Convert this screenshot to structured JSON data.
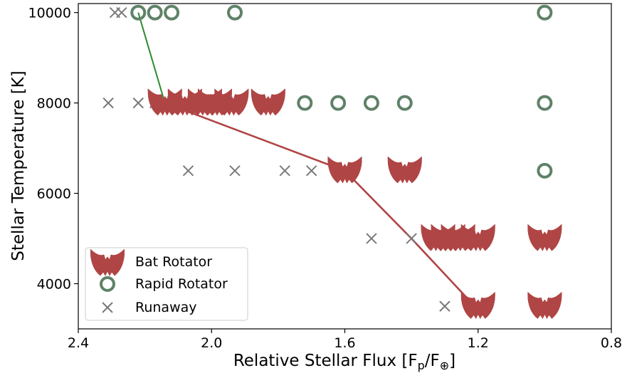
{
  "chart_data": {
    "type": "scatter",
    "title": "",
    "xlabel": "Relative Stellar Flux [F",
    "xlabel_sub": "p",
    "xlabel_sep": "/F",
    "xlabel_sub2": "⊕",
    "xlabel_close": "]",
    "ylabel": "Stellar Temperature [K]",
    "xlim": [
      2.4,
      0.8
    ],
    "ylim": [
      3000,
      10200
    ],
    "x_reversed": true,
    "xticks": [
      2.4,
      2.0,
      1.6,
      1.2,
      0.8
    ],
    "xtick_labels": [
      "2.4",
      "2.0",
      "1.6",
      "1.2",
      "0.8"
    ],
    "yticks": [
      4000,
      6000,
      8000,
      10000
    ],
    "ytick_labels": [
      "4000",
      "6000",
      "8000",
      "10000"
    ],
    "grid": false,
    "legend_position": "lower-left",
    "colors": {
      "bat": "#b04545",
      "rapid": "#5f8268",
      "runaway": "#7a7a7a",
      "boundary": "#b04545",
      "boundary_top": "#2e8b2e"
    },
    "series": [
      {
        "name": "Bat Rotator",
        "marker": "bat-icon",
        "points": [
          [
            2.14,
            8000
          ],
          [
            2.08,
            8000
          ],
          [
            2.02,
            8000
          ],
          [
            1.99,
            8000
          ],
          [
            1.94,
            8000
          ],
          [
            1.83,
            8000
          ],
          [
            1.6,
            6500
          ],
          [
            1.42,
            6500
          ],
          [
            1.32,
            5000
          ],
          [
            1.29,
            5000
          ],
          [
            1.26,
            5000
          ],
          [
            1.2,
            5000
          ],
          [
            1.2,
            3500
          ],
          [
            1.0,
            5000
          ],
          [
            1.0,
            3500
          ]
        ]
      },
      {
        "name": "Rapid Rotator",
        "marker": "circle",
        "points": [
          [
            2.22,
            10000
          ],
          [
            2.17,
            10000
          ],
          [
            2.12,
            10000
          ],
          [
            1.93,
            10000
          ],
          [
            1.0,
            10000
          ],
          [
            1.72,
            8000
          ],
          [
            1.62,
            8000
          ],
          [
            1.52,
            8000
          ],
          [
            1.42,
            8000
          ],
          [
            1.0,
            8000
          ],
          [
            1.0,
            6500
          ]
        ]
      },
      {
        "name": "Runaway",
        "marker": "x",
        "points": [
          [
            2.29,
            10000
          ],
          [
            2.27,
            10000
          ],
          [
            2.31,
            8000
          ],
          [
            2.22,
            8000
          ],
          [
            2.17,
            8000
          ],
          [
            2.07,
            6500
          ],
          [
            1.93,
            6500
          ],
          [
            1.78,
            6500
          ],
          [
            1.7,
            6500
          ],
          [
            1.52,
            5000
          ],
          [
            1.4,
            5000
          ],
          [
            1.3,
            3500
          ]
        ]
      }
    ],
    "boundary_line": [
      [
        2.22,
        10000
      ],
      [
        2.14,
        8000
      ],
      [
        1.6,
        6500
      ],
      [
        1.4,
        5000
      ],
      [
        1.21,
        3500
      ]
    ]
  }
}
